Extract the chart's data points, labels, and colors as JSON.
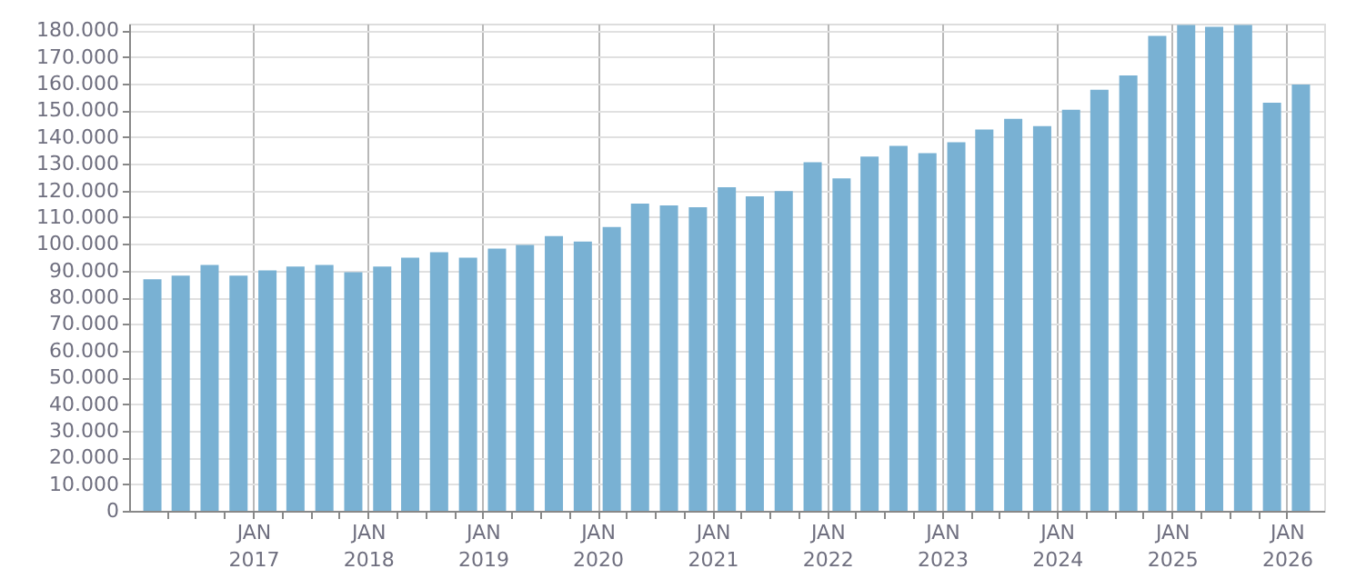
{
  "chart_data": {
    "type": "bar",
    "color": "#79b1d3",
    "x": [
      "2016-02-15",
      "2016-05-15",
      "2016-08-15",
      "2016-11-15",
      "2017-02-15",
      "2017-05-15",
      "2017-08-15",
      "2017-11-15",
      "2018-02-15",
      "2018-05-15",
      "2018-08-15",
      "2018-11-15",
      "2019-02-15",
      "2019-05-15",
      "2019-08-15",
      "2019-11-15",
      "2020-02-15",
      "2020-05-15",
      "2020-08-15",
      "2020-11-15",
      "2021-02-15",
      "2021-05-15",
      "2021-08-15",
      "2021-11-15",
      "2022-02-15",
      "2022-05-15",
      "2022-08-15",
      "2022-11-15",
      "2023-02-15",
      "2023-05-15",
      "2023-08-15",
      "2023-11-15",
      "2024-02-15",
      "2024-05-15",
      "2024-08-15",
      "2024-11-15",
      "2025-02-15",
      "2025-05-15",
      "2025-08-15",
      "2025-11-15",
      "2026-02-15"
    ],
    "values": [
      86700,
      88100,
      92100,
      88100,
      90100,
      91500,
      92100,
      89400,
      91500,
      94800,
      96900,
      94800,
      98200,
      99600,
      102900,
      100900,
      106300,
      115100,
      114400,
      113700,
      121200,
      117800,
      119800,
      130600,
      124500,
      132700,
      136700,
      134000,
      138100,
      142800,
      146800,
      144100,
      150200,
      157700,
      163100,
      177900,
      182000,
      181300,
      182000,
      152900,
      159700
    ],
    "xlim": [
      "2016-01",
      "2026-04"
    ],
    "xticks": [
      {
        "value": "2016-04",
        "label": null
      },
      {
        "value": "2016-07",
        "label": null
      },
      {
        "value": "2016-10",
        "label": null
      },
      {
        "value": "2017-01",
        "label": "JAN 2017"
      },
      {
        "value": "2017-04",
        "label": null
      },
      {
        "value": "2017-07",
        "label": null
      },
      {
        "value": "2017-10",
        "label": null
      },
      {
        "value": "2018-01",
        "label": "JAN 2018"
      },
      {
        "value": "2018-04",
        "label": null
      },
      {
        "value": "2018-07",
        "label": null
      },
      {
        "value": "2018-10",
        "label": null
      },
      {
        "value": "2019-01",
        "label": "JAN 2019"
      },
      {
        "value": "2019-04",
        "label": null
      },
      {
        "value": "2019-07",
        "label": null
      },
      {
        "value": "2019-10",
        "label": null
      },
      {
        "value": "2020-01",
        "label": "JAN 2020"
      },
      {
        "value": "2020-04",
        "label": null
      },
      {
        "value": "2020-07",
        "label": null
      },
      {
        "value": "2020-10",
        "label": null
      },
      {
        "value": "2021-01",
        "label": "JAN 2021"
      },
      {
        "value": "2021-04",
        "label": null
      },
      {
        "value": "2021-07",
        "label": null
      },
      {
        "value": "2021-10",
        "label": null
      },
      {
        "value": "2022-01",
        "label": "JAN 2022"
      },
      {
        "value": "2022-04",
        "label": null
      },
      {
        "value": "2022-07",
        "label": null
      },
      {
        "value": "2022-10",
        "label": null
      },
      {
        "value": "2023-01",
        "label": "JAN 2023"
      },
      {
        "value": "2023-04",
        "label": null
      },
      {
        "value": "2023-07",
        "label": null
      },
      {
        "value": "2023-10",
        "label": null
      },
      {
        "value": "2024-01",
        "label": "JAN 2024"
      },
      {
        "value": "2024-04",
        "label": null
      },
      {
        "value": "2024-07",
        "label": null
      },
      {
        "value": "2024-10",
        "label": null
      },
      {
        "value": "2025-01",
        "label": "JAN 2025"
      },
      {
        "value": "2025-04",
        "label": null
      },
      {
        "value": "2025-07",
        "label": null
      },
      {
        "value": "2025-10",
        "label": null
      },
      {
        "value": "2026-01",
        "label": "JAN 2026"
      }
    ],
    "ylim": [
      0,
      182500
    ],
    "yticks": [
      {
        "value": 0,
        "label": "0"
      },
      {
        "value": 10000,
        "label": "10.000"
      },
      {
        "value": 20000,
        "label": "20.000"
      },
      {
        "value": 30000,
        "label": "30.000"
      },
      {
        "value": 40000,
        "label": "40.000"
      },
      {
        "value": 50000,
        "label": "50.000"
      },
      {
        "value": 60000,
        "label": "60.000"
      },
      {
        "value": 70000,
        "label": "70.000"
      },
      {
        "value": 80000,
        "label": "80.000"
      },
      {
        "value": 90000,
        "label": "90.000"
      },
      {
        "value": 100000,
        "label": "100.000"
      },
      {
        "value": 110000,
        "label": "110.000"
      },
      {
        "value": 120000,
        "label": "120.000"
      },
      {
        "value": 130000,
        "label": "130.000"
      },
      {
        "value": 140000,
        "label": "140.000"
      },
      {
        "value": 150000,
        "label": "150.000"
      },
      {
        "value": 160000,
        "label": "160.000"
      },
      {
        "value": 170000,
        "label": "170.000"
      },
      {
        "value": 180000,
        "label": "180.000"
      }
    ],
    "grid": true
  }
}
